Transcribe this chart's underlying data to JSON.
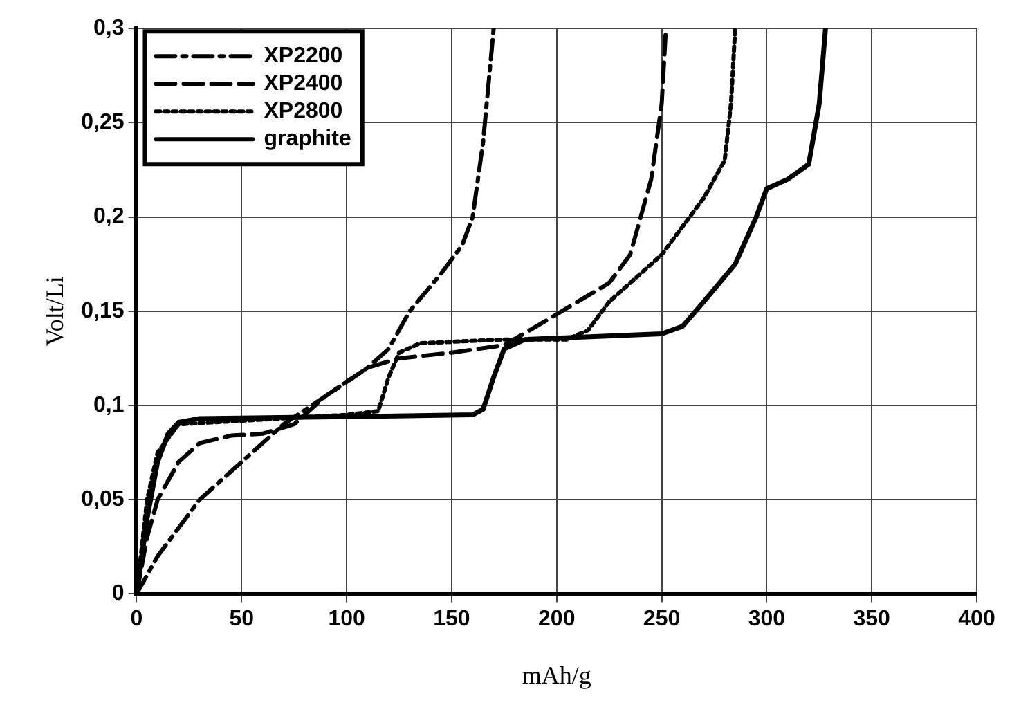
{
  "chart_data": {
    "type": "line",
    "xlabel": "mAh/g",
    "ylabel": "Volt/Li",
    "xlim": [
      0,
      400
    ],
    "xticks": [
      0,
      50,
      100,
      150,
      200,
      250,
      300,
      350,
      400
    ],
    "ylim": [
      0,
      0.3
    ],
    "yticks": [
      0,
      {
        "value": 0.05,
        "label": "0,05"
      },
      {
        "value": 0.1,
        "label": "0,1"
      },
      {
        "value": 0.15,
        "label": "0,15"
      },
      {
        "value": 0.2,
        "label": "0,2"
      },
      {
        "value": 0.25,
        "label": "0,25"
      },
      {
        "value": 0.3,
        "label": "0,3"
      }
    ],
    "grid": true,
    "legend": "top left",
    "marker": "none",
    "series": [
      {
        "name": "XP2200",
        "color": "#000000",
        "line_style": "dashdot",
        "x": [
          0,
          10,
          20,
          30,
          50,
          70,
          90,
          110,
          120,
          130,
          145,
          155,
          160,
          165,
          170
        ],
        "values": [
          0,
          0.02,
          0.035,
          0.05,
          0.07,
          0.09,
          0.105,
          0.12,
          0.13,
          0.15,
          0.17,
          0.185,
          0.2,
          0.24,
          0.3
        ]
      },
      {
        "name": "XP2400",
        "color": "#000000",
        "line_style": "dashed",
        "x": [
          0,
          5,
          10,
          20,
          30,
          45,
          60,
          75,
          90,
          110,
          125,
          150,
          175,
          195,
          210,
          225,
          235,
          245,
          250,
          252
        ],
        "values": [
          0,
          0.03,
          0.05,
          0.07,
          0.08,
          0.084,
          0.085,
          0.09,
          0.105,
          0.12,
          0.125,
          0.128,
          0.132,
          0.145,
          0.155,
          0.165,
          0.18,
          0.22,
          0.26,
          0.3
        ]
      },
      {
        "name": "XP2800",
        "color": "#000000",
        "line_style": "dotted",
        "x": [
          0,
          5,
          10,
          20,
          100,
          115,
          120,
          125,
          135,
          175,
          205,
          215,
          225,
          240,
          250,
          260,
          270,
          280,
          283,
          285
        ],
        "values": [
          0,
          0.05,
          0.075,
          0.09,
          0.095,
          0.097,
          0.115,
          0.128,
          0.133,
          0.135,
          0.135,
          0.14,
          0.155,
          0.17,
          0.18,
          0.195,
          0.21,
          0.23,
          0.26,
          0.3
        ]
      },
      {
        "name": "graphite",
        "color": "#000000",
        "line_style": "solid",
        "x": [
          0,
          5,
          10,
          15,
          20,
          30,
          100,
          160,
          165,
          170,
          175,
          185,
          250,
          260,
          270,
          285,
          295,
          300,
          310,
          320,
          325,
          328
        ],
        "values": [
          0,
          0.04,
          0.07,
          0.085,
          0.091,
          0.093,
          0.094,
          0.095,
          0.098,
          0.115,
          0.13,
          0.135,
          0.138,
          0.142,
          0.155,
          0.175,
          0.2,
          0.215,
          0.22,
          0.228,
          0.26,
          0.3
        ]
      }
    ]
  }
}
